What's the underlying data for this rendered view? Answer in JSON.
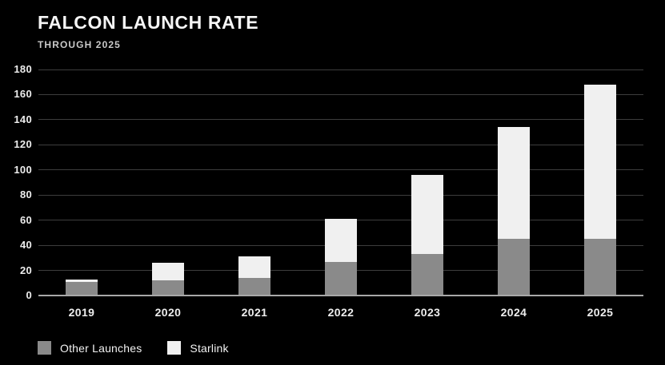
{
  "header": {
    "title": "FALCON LAUNCH RATE",
    "subtitle": "THROUGH 2025"
  },
  "legend": {
    "other_label": "Other Launches",
    "starlink_label": "Starlink"
  },
  "colors": {
    "background": "#000000",
    "other_launches": "#8a8a8a",
    "starlink": "#f0f0f0",
    "gridline": "#3d3d3d",
    "axis_line": "#a8a8a8",
    "text": "#ededed"
  },
  "chart_data": {
    "type": "bar",
    "stacked": true,
    "title": "FALCON LAUNCH RATE",
    "subtitle": "THROUGH 2025",
    "categories": [
      "2019",
      "2020",
      "2021",
      "2022",
      "2023",
      "2024",
      "2025"
    ],
    "series": [
      {
        "name": "Other Launches",
        "color": "#8a8a8a",
        "values": [
          11,
          12,
          14,
          27,
          33,
          45,
          45
        ]
      },
      {
        "name": "Starlink",
        "color": "#f0f0f0",
        "values": [
          2,
          14,
          17,
          34,
          63,
          89,
          123
        ]
      }
    ],
    "totals": [
      13,
      26,
      31,
      61,
      96,
      134,
      168
    ],
    "xlabel": "",
    "ylabel": "",
    "ylim": [
      0,
      180
    ],
    "yticks": [
      0,
      20,
      40,
      60,
      80,
      100,
      120,
      140,
      160,
      180
    ],
    "grid": true,
    "legend_position": "bottom-left"
  }
}
